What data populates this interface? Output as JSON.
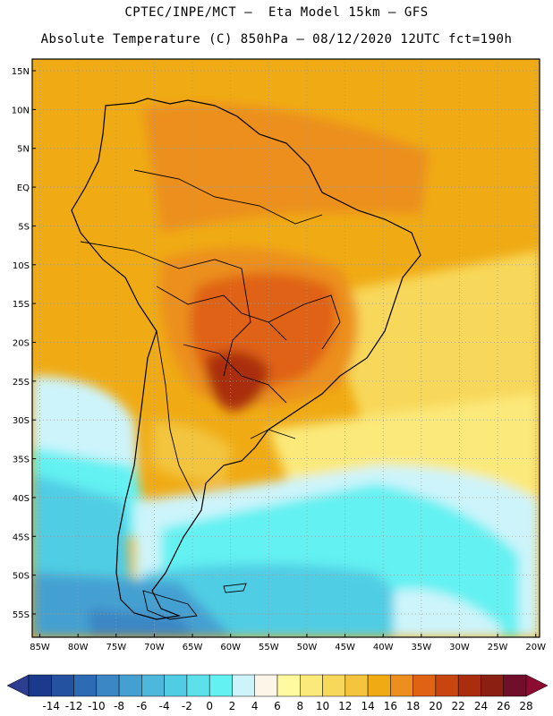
{
  "header": {
    "line1": "CPTEC/INPE/MCT –  Eta Model 15km – GFS",
    "line2": "Absolute Temperature (C) 850hPa – 08/12/2020 12UTC fct=190h"
  },
  "map": {
    "lat_labels": [
      "15N",
      "10N",
      "5N",
      "EQ",
      "5S",
      "10S",
      "15S",
      "20S",
      "25S",
      "30S",
      "35S",
      "40S",
      "45S",
      "50S",
      "55S"
    ],
    "lon_labels": [
      "85W",
      "80W",
      "75W",
      "70W",
      "65W",
      "60W",
      "55W",
      "50W",
      "45W",
      "40W",
      "35W",
      "30W",
      "25W",
      "20W"
    ],
    "lat_values": [
      15,
      10,
      5,
      0,
      -5,
      -10,
      -15,
      -20,
      -25,
      -30,
      -35,
      -40,
      -45,
      -50,
      -55
    ],
    "lon_values": [
      -85,
      -80,
      -75,
      -70,
      -65,
      -60,
      -55,
      -50,
      -45,
      -40,
      -35,
      -30,
      -25,
      -20
    ],
    "extent": {
      "lon_min": -86,
      "lon_max": -19.5,
      "lat_min": -58,
      "lat_max": 16.5
    }
  },
  "colorbar": {
    "labels": [
      "-14",
      "-12",
      "-10",
      "-8",
      "-6",
      "-4",
      "-2",
      "0",
      "2",
      "4",
      "6",
      "8",
      "10",
      "12",
      "14",
      "16",
      "18",
      "20",
      "22",
      "24",
      "26",
      "28"
    ],
    "colors": [
      "#1b3a8e",
      "#2452a0",
      "#2d6cb4",
      "#3b86c5",
      "#45a0d2",
      "#4db8dc",
      "#50cde4",
      "#5ce1ea",
      "#63f1f2",
      "#cdf4fb",
      "#fbf6e7",
      "#fff9a0",
      "#fbe97a",
      "#f8d85a",
      "#f3c43c",
      "#f0ab14",
      "#ec8f1e",
      "#e06214",
      "#c94510",
      "#aa2e0e",
      "#8a1f12",
      "#700e2b"
    ],
    "left_arrow": "#2d3d8f",
    "right_arrow": "#8c0b30"
  }
}
